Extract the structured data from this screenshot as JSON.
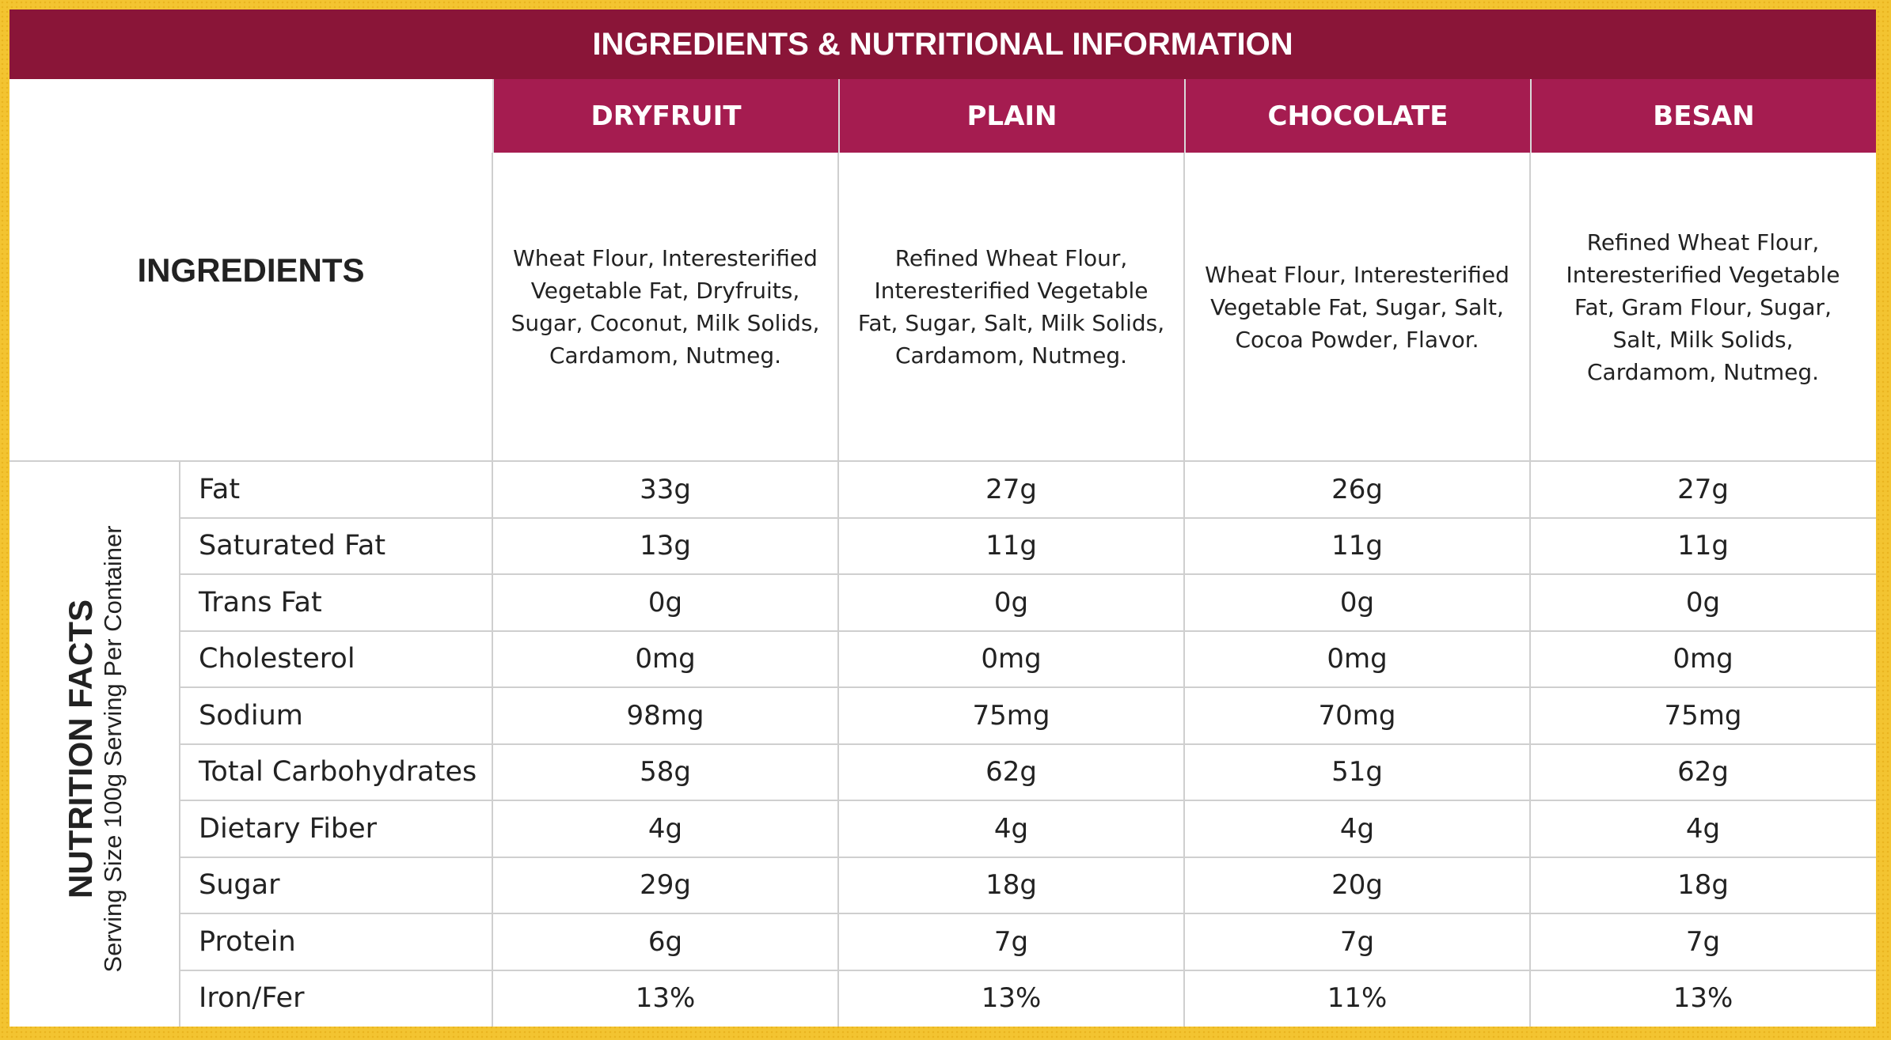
{
  "header": {
    "title": "INGREDIENTS & NUTRITIONAL INFORMATION"
  },
  "table": {
    "columns": [
      "DRYFRUIT",
      "PLAIN",
      "CHOCOLATE",
      "BESAN"
    ],
    "ingredients_label": "INGREDIENTS",
    "ingredients": [
      "Wheat Flour, Interesterified Vegetable Fat, Dryfruits, Sugar, Coconut, Milk Solids, Cardamom, Nutmeg.",
      "Refined Wheat Flour, Interesterified Vegetable Fat, Sugar, Salt, Milk Solids, Cardamom, Nutmeg.",
      "Wheat Flour, Interesterified Vegetable Fat, Sugar, Salt, Cocoa Powder, Flavor.",
      "Refined Wheat Flour, Interesterified Vegetable Fat, Gram Flour, Sugar, Salt, Milk Solids, Cardamom, Nutmeg."
    ],
    "nutrition_label": "NUTRITION FACTS",
    "serving": "Serving Size 100g Serving Per Container",
    "rows": [
      {
        "label": "Fat",
        "values": [
          "33g",
          "27g",
          "26g",
          "27g"
        ]
      },
      {
        "label": "Saturated Fat",
        "values": [
          "13g",
          "11g",
          "11g",
          "11g"
        ]
      },
      {
        "label": "Trans Fat",
        "values": [
          "0g",
          "0g",
          "0g",
          "0g"
        ]
      },
      {
        "label": "Cholesterol",
        "values": [
          "0mg",
          "0mg",
          "0mg",
          "0mg"
        ]
      },
      {
        "label": "Sodium",
        "values": [
          "98mg",
          "75mg",
          "70mg",
          "75mg"
        ]
      },
      {
        "label": "Total Carbohydrates",
        "values": [
          "58g",
          "62g",
          "51g",
          "62g"
        ]
      },
      {
        "label": "Dietary Fiber",
        "values": [
          "4g",
          "4g",
          "4g",
          "4g"
        ]
      },
      {
        "label": "Sugar",
        "values": [
          "29g",
          "18g",
          "20g",
          "18g"
        ]
      },
      {
        "label": "Protein",
        "values": [
          "6g",
          "7g",
          "7g",
          "7g"
        ]
      },
      {
        "label": "Iron/Fer",
        "values": [
          "13%",
          "13%",
          "11%",
          "13%"
        ]
      }
    ]
  }
}
